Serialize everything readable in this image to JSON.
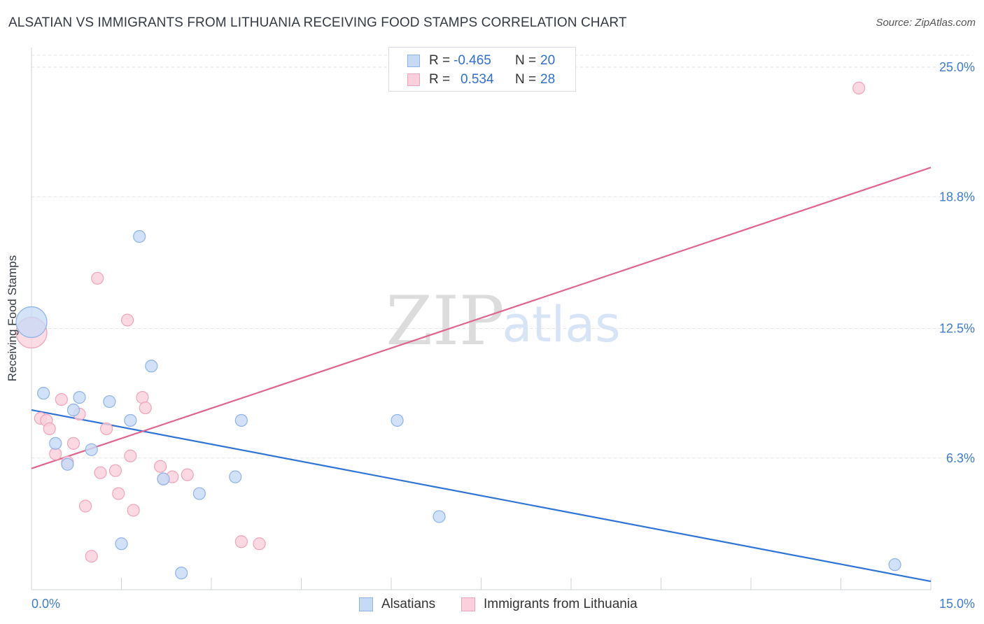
{
  "title": "ALSATIAN VS IMMIGRANTS FROM LITHUANIA RECEIVING FOOD STAMPS CORRELATION CHART",
  "source": "Source: ZipAtlas.com",
  "watermark": {
    "zip": "ZIP",
    "atlas": "atlas"
  },
  "legend_top": {
    "rows": [
      {
        "r_label": "R =",
        "r_value": "-0.465",
        "n_label": "N =",
        "n_value": "20"
      },
      {
        "r_label": "R =",
        "r_value": "0.534",
        "n_label": "N =",
        "n_value": "28"
      }
    ]
  },
  "legend_bottom": [
    "Alsatians",
    "Immigrants from Lithuania"
  ],
  "colors": {
    "blue_fill": "#c6d9f5",
    "blue_stroke": "#8fb3e8",
    "blue_line": "#2f74d6",
    "pink_fill": "#fad0dc",
    "pink_stroke": "#f0a3ba",
    "pink_line": "#e0658d",
    "tick_label": "#3d7cd0",
    "grid": "#dfe3e8"
  },
  "chart_data": {
    "type": "scatter",
    "title": "ALSATIAN VS IMMIGRANTS FROM LITHUANIA RECEIVING FOOD STAMPS CORRELATION CHART",
    "xlabel": "",
    "ylabel": "Receiving Food Stamps",
    "xlim": [
      0,
      15
    ],
    "ylim": [
      0,
      25.0
    ],
    "x_tick_labels": [
      "0.0%",
      "15.0%"
    ],
    "y_ticks": [
      6.3,
      12.5,
      18.8,
      25.0
    ],
    "y_tick_labels": [
      "6.3%",
      "12.5%",
      "18.8%",
      "25.0%"
    ],
    "grid": true,
    "series": [
      {
        "name": "Alsatians",
        "r": -0.465,
        "n": 20,
        "points": [
          {
            "x": 0.0,
            "y": 12.8,
            "big": true
          },
          {
            "x": 0.2,
            "y": 9.4
          },
          {
            "x": 0.4,
            "y": 7.0
          },
          {
            "x": 0.6,
            "y": 6.0
          },
          {
            "x": 0.7,
            "y": 8.6
          },
          {
            "x": 0.8,
            "y": 9.2
          },
          {
            "x": 1.0,
            "y": 6.7
          },
          {
            "x": 1.3,
            "y": 9.0
          },
          {
            "x": 1.5,
            "y": 2.2
          },
          {
            "x": 1.65,
            "y": 8.1
          },
          {
            "x": 1.8,
            "y": 16.9
          },
          {
            "x": 2.0,
            "y": 10.7
          },
          {
            "x": 2.2,
            "y": 5.3
          },
          {
            "x": 2.5,
            "y": 0.8
          },
          {
            "x": 2.8,
            "y": 4.6
          },
          {
            "x": 3.4,
            "y": 5.4
          },
          {
            "x": 3.5,
            "y": 8.1
          },
          {
            "x": 6.1,
            "y": 8.1
          },
          {
            "x": 6.8,
            "y": 3.5
          },
          {
            "x": 14.4,
            "y": 1.2
          }
        ],
        "trend": {
          "x": [
            0,
            15
          ],
          "y": [
            8.6,
            0.4
          ]
        }
      },
      {
        "name": "Immigrants from Lithuania",
        "r": 0.534,
        "n": 28,
        "points": [
          {
            "x": 0.0,
            "y": 12.3,
            "big": true
          },
          {
            "x": 0.15,
            "y": 8.2
          },
          {
            "x": 0.25,
            "y": 8.1
          },
          {
            "x": 0.3,
            "y": 7.7
          },
          {
            "x": 0.4,
            "y": 6.5
          },
          {
            "x": 0.5,
            "y": 9.1
          },
          {
            "x": 0.6,
            "y": 6.1
          },
          {
            "x": 0.7,
            "y": 7.0
          },
          {
            "x": 0.8,
            "y": 8.4
          },
          {
            "x": 0.9,
            "y": 4.0
          },
          {
            "x": 1.0,
            "y": 1.6
          },
          {
            "x": 1.1,
            "y": 14.9
          },
          {
            "x": 1.15,
            "y": 5.6
          },
          {
            "x": 1.25,
            "y": 7.7
          },
          {
            "x": 1.4,
            "y": 5.7
          },
          {
            "x": 1.45,
            "y": 4.6
          },
          {
            "x": 1.6,
            "y": 12.9
          },
          {
            "x": 1.65,
            "y": 6.4
          },
          {
            "x": 1.7,
            "y": 3.8
          },
          {
            "x": 1.85,
            "y": 9.2
          },
          {
            "x": 1.9,
            "y": 8.7
          },
          {
            "x": 2.15,
            "y": 5.9
          },
          {
            "x": 2.2,
            "y": 5.3
          },
          {
            "x": 2.35,
            "y": 5.4
          },
          {
            "x": 2.6,
            "y": 5.5
          },
          {
            "x": 3.5,
            "y": 2.3
          },
          {
            "x": 3.8,
            "y": 2.2
          },
          {
            "x": 13.8,
            "y": 24.0
          }
        ],
        "trend": {
          "x": [
            0,
            15
          ],
          "y": [
            5.8,
            20.2
          ]
        }
      }
    ]
  }
}
